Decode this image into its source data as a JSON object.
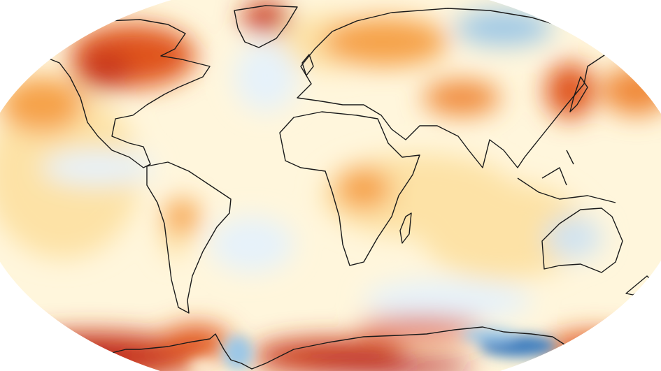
{
  "map": {
    "kind": "global temperature anomaly",
    "projection": "Robinson",
    "colors": {
      "ocean_neutral": "#fff6dc",
      "warm_light": "#fde2a6",
      "warm_mid": "#f6a24a",
      "warm_strong": "#e0551f",
      "warm_extreme": "#b2181b",
      "cool_light": "#e6f2fa",
      "cool_mid": "#9cc7e6",
      "cool_strong": "#3f7fbf",
      "coastline": "#1a1a1a",
      "background": "#ffffff"
    }
  }
}
